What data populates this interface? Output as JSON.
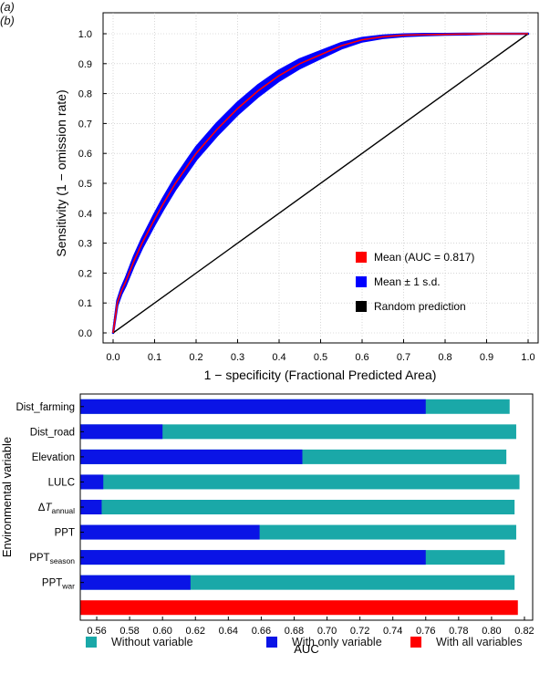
{
  "chart_data": [
    {
      "panel_label": "(a)",
      "type": "line",
      "xlabel": "1 − specificity  (Fractional Predicted Area)",
      "ylabel": "Sensitivity (1 − omission rate)",
      "xlim": [
        0,
        1
      ],
      "ylim": [
        0,
        1
      ],
      "xticks": [
        "0.0",
        "0.1",
        "0.2",
        "0.3",
        "0.4",
        "0.5",
        "0.6",
        "0.7",
        "0.8",
        "0.9",
        "1.0"
      ],
      "yticks": [
        "0.0",
        "0.1",
        "0.2",
        "0.3",
        "0.4",
        "0.5",
        "0.6",
        "0.7",
        "0.8",
        "0.9",
        "1.0"
      ],
      "series": [
        {
          "name": "Mean (AUC = 0.817)",
          "color": "#ff0000",
          "x": [
            0,
            0.01,
            0.02,
            0.03,
            0.05,
            0.07,
            0.1,
            0.12,
            0.15,
            0.18,
            0.2,
            0.25,
            0.3,
            0.35,
            0.4,
            0.45,
            0.5,
            0.55,
            0.6,
            0.65,
            0.7,
            0.75,
            0.8,
            0.85,
            0.9,
            0.95,
            1.0
          ],
          "y": [
            0,
            0.1,
            0.14,
            0.17,
            0.24,
            0.3,
            0.38,
            0.43,
            0.5,
            0.56,
            0.6,
            0.68,
            0.75,
            0.81,
            0.86,
            0.9,
            0.93,
            0.96,
            0.98,
            0.99,
            0.995,
            0.997,
            0.998,
            0.999,
            1.0,
            1.0,
            1.0
          ]
        },
        {
          "name": "Mean ± 1 s.d.",
          "color": "#0000ff",
          "sd": [
            0,
            0.008,
            0.01,
            0.012,
            0.015,
            0.016,
            0.018,
            0.019,
            0.02,
            0.021,
            0.021,
            0.021,
            0.02,
            0.019,
            0.017,
            0.015,
            0.012,
            0.009,
            0.006,
            0.004,
            0.003,
            0.002,
            0.001,
            0.001,
            0,
            0,
            0
          ]
        },
        {
          "name": "Random prediction",
          "color": "#000000",
          "x": [
            0,
            1
          ],
          "y": [
            0,
            1
          ]
        }
      ],
      "legend_position": "bottom-right"
    },
    {
      "panel_label": "(b)",
      "type": "bar",
      "orientation": "horizontal",
      "xlabel": "AUC",
      "ylabel": "Environmental variable",
      "xlim": [
        0.55,
        0.825
      ],
      "xticks": [
        "0.56",
        "0.58",
        "0.60",
        "0.62",
        "0.64",
        "0.66",
        "0.68",
        "0.70",
        "0.72",
        "0.74",
        "0.76",
        "0.78",
        "0.80",
        "0.82"
      ],
      "categories": [
        {
          "base": "Dist_farming",
          "sub": ""
        },
        {
          "base": "Dist_road",
          "sub": ""
        },
        {
          "base": "Elevation",
          "sub": ""
        },
        {
          "base": "LULC",
          "sub": ""
        },
        {
          "base": "ΔT",
          "sub": "annual"
        },
        {
          "base": "PPT",
          "sub": ""
        },
        {
          "base": "PPT",
          "sub": "season"
        },
        {
          "base": "PPT",
          "sub": "war"
        },
        {
          "base": "",
          "sub": ""
        }
      ],
      "series": [
        {
          "name": "Without variable",
          "color": "#1aa8a8",
          "values": [
            0.811,
            0.815,
            0.809,
            0.817,
            0.814,
            0.815,
            0.808,
            0.814,
            null
          ]
        },
        {
          "name": "With only variable",
          "color": "#0a14e6",
          "values": [
            0.76,
            0.6,
            0.685,
            0.564,
            0.563,
            0.659,
            0.76,
            0.617,
            null
          ]
        },
        {
          "name": "With all variables",
          "color": "#ff0000",
          "values": [
            null,
            null,
            null,
            null,
            null,
            null,
            null,
            null,
            0.816
          ]
        }
      ],
      "legend_position": "bottom"
    }
  ]
}
